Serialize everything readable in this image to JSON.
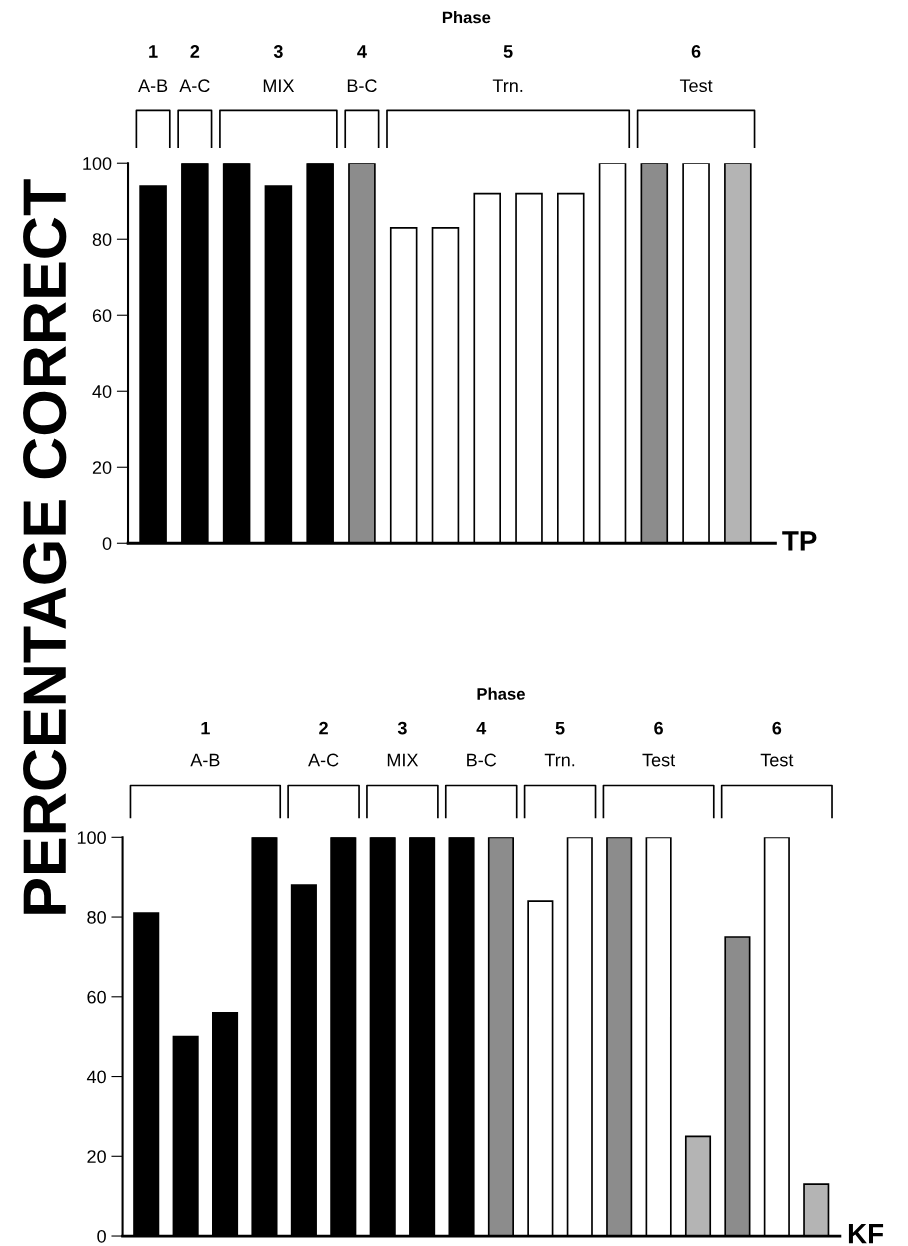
{
  "chart_data": [
    {
      "type": "bar",
      "title": "Phase",
      "ylabel": "PERCENTAGE CORRECT",
      "categories": [
        null,
        null,
        null,
        null,
        null,
        null,
        null,
        null,
        null,
        null,
        null,
        null,
        null,
        null,
        null
      ],
      "values": [
        94,
        100,
        100,
        94,
        100,
        100,
        83,
        83,
        92,
        92,
        92,
        100,
        100,
        100,
        100
      ],
      "colors": [
        "#000000",
        "#000000",
        "#000000",
        "#000000",
        "#000000",
        "#8c8c8c",
        "#ffffff",
        "#ffffff",
        "#ffffff",
        "#ffffff",
        "#ffffff",
        "#ffffff",
        "#8c8c8c",
        "#ffffff",
        "#b4b4b4"
      ],
      "ylim": [
        0,
        100
      ],
      "yticks": [
        0,
        20,
        40,
        60,
        80,
        100
      ],
      "tick_labels": "y",
      "annotations": [
        "1",
        "A-B",
        "2",
        "A-C",
        "3",
        "MIX",
        "4",
        "B-C",
        "5",
        "Trn.",
        "6",
        "Test",
        "TP"
      ]
    },
    {
      "type": "bar",
      "title": "Phase",
      "categories": [
        null,
        null,
        null,
        null,
        null,
        null,
        null,
        null,
        null,
        null,
        null,
        null,
        null,
        null,
        null,
        null,
        null,
        null
      ],
      "values": [
        81,
        50,
        56,
        100,
        88,
        100,
        100,
        100,
        100,
        100,
        84,
        100,
        100,
        100,
        25,
        75,
        100,
        13
      ],
      "colors": [
        "#000000",
        "#000000",
        "#000000",
        "#000000",
        "#000000",
        "#000000",
        "#000000",
        "#000000",
        "#000000",
        "#8c8c8c",
        "#ffffff",
        "#ffffff",
        "#8c8c8c",
        "#ffffff",
        "#b4b4b4",
        "#8c8c8c",
        "#ffffff",
        "#b4b4b4"
      ],
      "ylim": [
        0,
        100
      ],
      "yticks": [
        0,
        20,
        40,
        60,
        80,
        100
      ],
      "tick_labels": "y",
      "annotations": [
        "1",
        "A-B",
        "2",
        "A-C",
        "3",
        "MIX",
        "4",
        "B-C",
        "5",
        "Trn.",
        "6",
        "Test",
        "6",
        "Test",
        "KF"
      ]
    }
  ]
}
